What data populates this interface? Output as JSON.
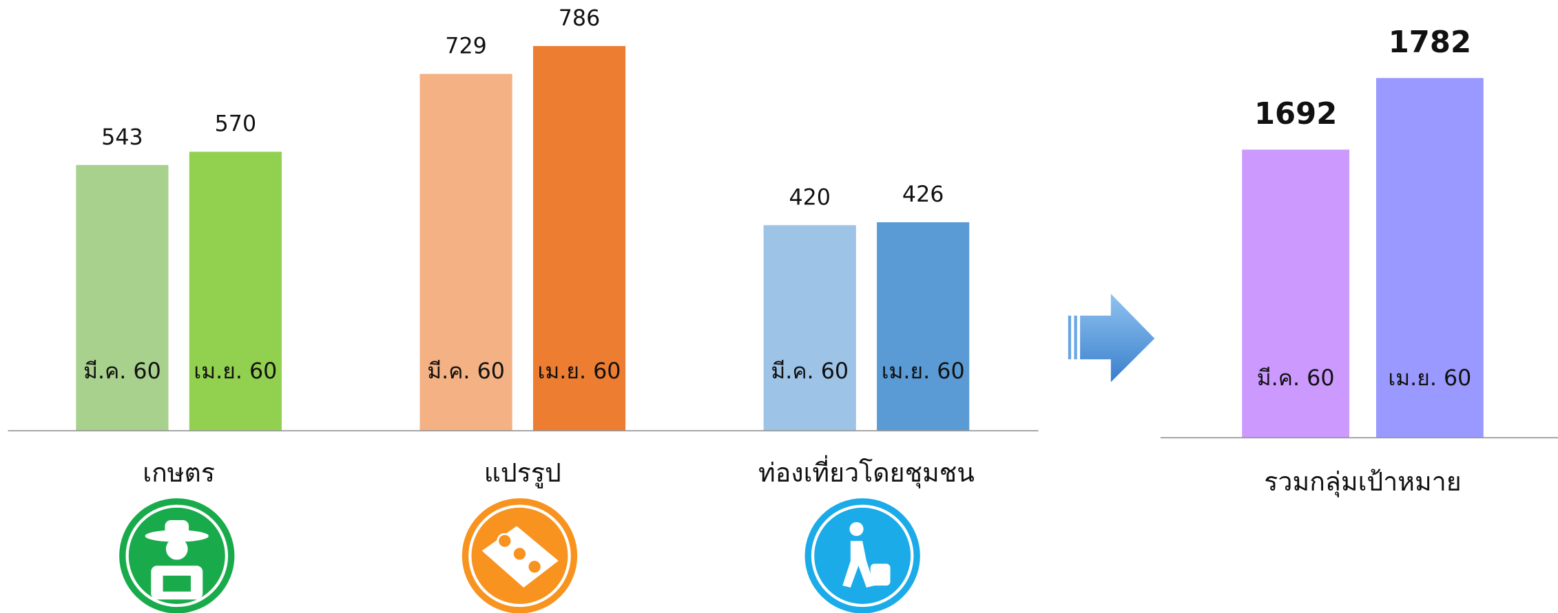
{
  "chart_data": [
    {
      "type": "bar",
      "categories": [
        "เกษตร",
        "แปรรูป",
        "ท่องเที่ยวโดยชุมชน"
      ],
      "series": [
        {
          "name": "มี.ค. 60",
          "colors": [
            "#a9d18e",
            "#f4b183",
            "#9dc3e6"
          ],
          "values": [
            543,
            729,
            420
          ]
        },
        {
          "name": "เม.ย. 60",
          "colors": [
            "#92d050",
            "#ed7d31",
            "#5b9bd5"
          ],
          "values": [
            570,
            786,
            426
          ]
        }
      ],
      "ylim": [
        0,
        880
      ]
    },
    {
      "type": "bar",
      "categories": [
        "รวมกลุ่มเป้าหมาย"
      ],
      "series": [
        {
          "name": "มี.ค. 60",
          "colors": [
            "#cc99ff"
          ],
          "values": [
            1692
          ]
        },
        {
          "name": "เม.ย. 60",
          "colors": [
            "#9999ff"
          ],
          "values": [
            1782
          ]
        }
      ],
      "ylim": [
        1330,
        1880
      ]
    }
  ]
}
